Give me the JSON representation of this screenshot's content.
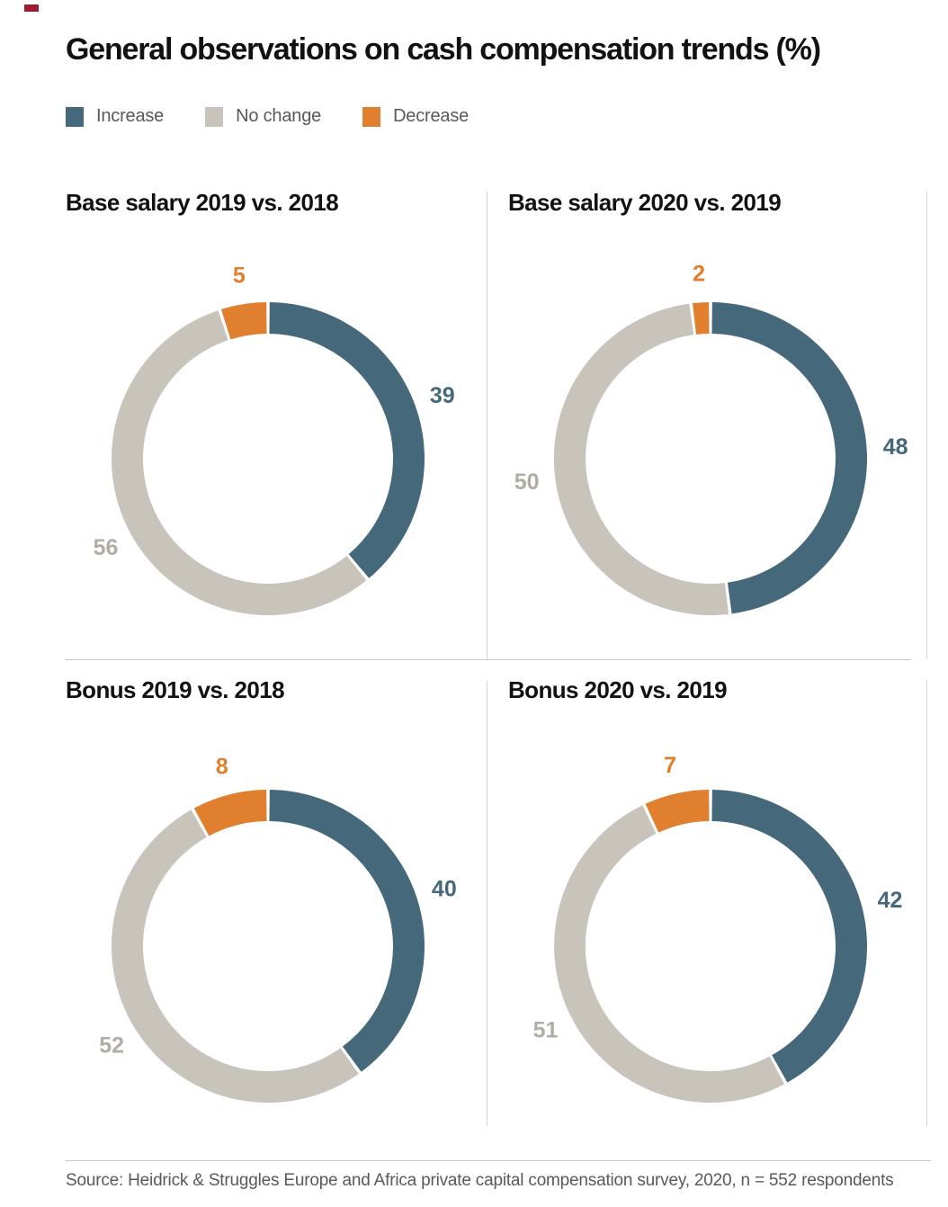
{
  "header": {
    "title": "General observations on cash compensation trends (%)"
  },
  "legend": {
    "items": [
      {
        "label": "Increase",
        "color": "#45687a"
      },
      {
        "label": "No change",
        "color": "#c8c4bc"
      },
      {
        "label": "Decrease",
        "color": "#e07f2d"
      }
    ]
  },
  "chart_data": {
    "type": "pie",
    "variant": "donut",
    "title": "General observations on cash compensation trends (%)",
    "legend_position": "top",
    "start_angle_deg": 0,
    "direction": "clockwise",
    "categories": [
      "Increase",
      "No change",
      "Decrease"
    ],
    "segment_colors": [
      "#45687a",
      "#c8c4bc",
      "#e07f2d"
    ],
    "label_colors": [
      "#45687a",
      "#b1ada4",
      "#e07f2d"
    ],
    "charts": [
      {
        "title": "Base salary 2019 vs. 2018",
        "values": [
          39,
          56,
          5
        ]
      },
      {
        "title": "Base salary 2020 vs. 2019",
        "values": [
          48,
          50,
          2
        ]
      },
      {
        "title": "Bonus 2019 vs. 2018",
        "values": [
          40,
          52,
          8
        ]
      },
      {
        "title": "Bonus 2020 vs. 2019",
        "values": [
          42,
          51,
          7
        ]
      }
    ]
  },
  "footer": {
    "source": "Source: Heidrick & Struggles Europe and Africa private capital compensation survey, 2020, n = 552 respondents"
  }
}
